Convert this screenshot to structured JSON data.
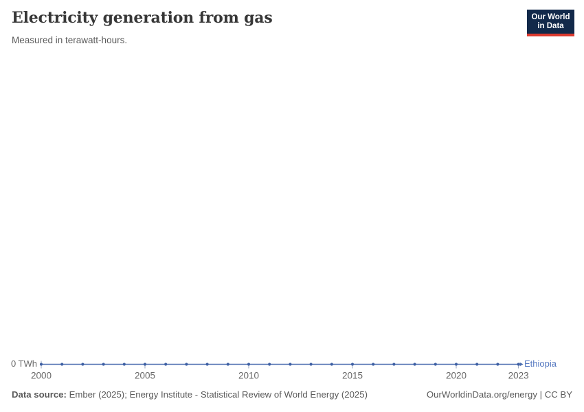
{
  "header": {
    "title": "Electricity generation from gas",
    "subtitle": "Measured in terawatt-hours.",
    "logo": {
      "line1": "Our World",
      "line2": "in Data"
    }
  },
  "chart_data": {
    "type": "line",
    "title": "Electricity generation from gas",
    "unit": "terawatt-hours",
    "x": [
      2000,
      2001,
      2002,
      2003,
      2004,
      2005,
      2006,
      2007,
      2008,
      2009,
      2010,
      2011,
      2012,
      2013,
      2014,
      2015,
      2016,
      2017,
      2018,
      2019,
      2020,
      2021,
      2022,
      2023
    ],
    "series": [
      {
        "name": "Ethiopia",
        "values": [
          0,
          0,
          0,
          0,
          0,
          0,
          0,
          0,
          0,
          0,
          0,
          0,
          0,
          0,
          0,
          0,
          0,
          0,
          0,
          0,
          0,
          0,
          0,
          0
        ]
      }
    ],
    "x_tick_labels": [
      "2000",
      "2005",
      "2010",
      "2015",
      "2020",
      "2023"
    ],
    "y_tick_labels": [
      "0 TWh"
    ],
    "ylim": [
      0,
      0
    ],
    "grid": false,
    "legend_position": "end-of-line-label"
  },
  "colors": {
    "line": "#4d6fb0",
    "marker": "#3d5fa3",
    "tick": "#97a3bd",
    "axis_text": "#686868",
    "entity_label": "#5679c1",
    "logo_bg": "#12294a",
    "logo_bar": "#dc3a2f"
  },
  "footer": {
    "source_label": "Data source:",
    "source_text": "Ember (2025); Energy Institute - Statistical Review of World Energy (2025)",
    "license_text": "OurWorldinData.org/energy | CC BY"
  }
}
